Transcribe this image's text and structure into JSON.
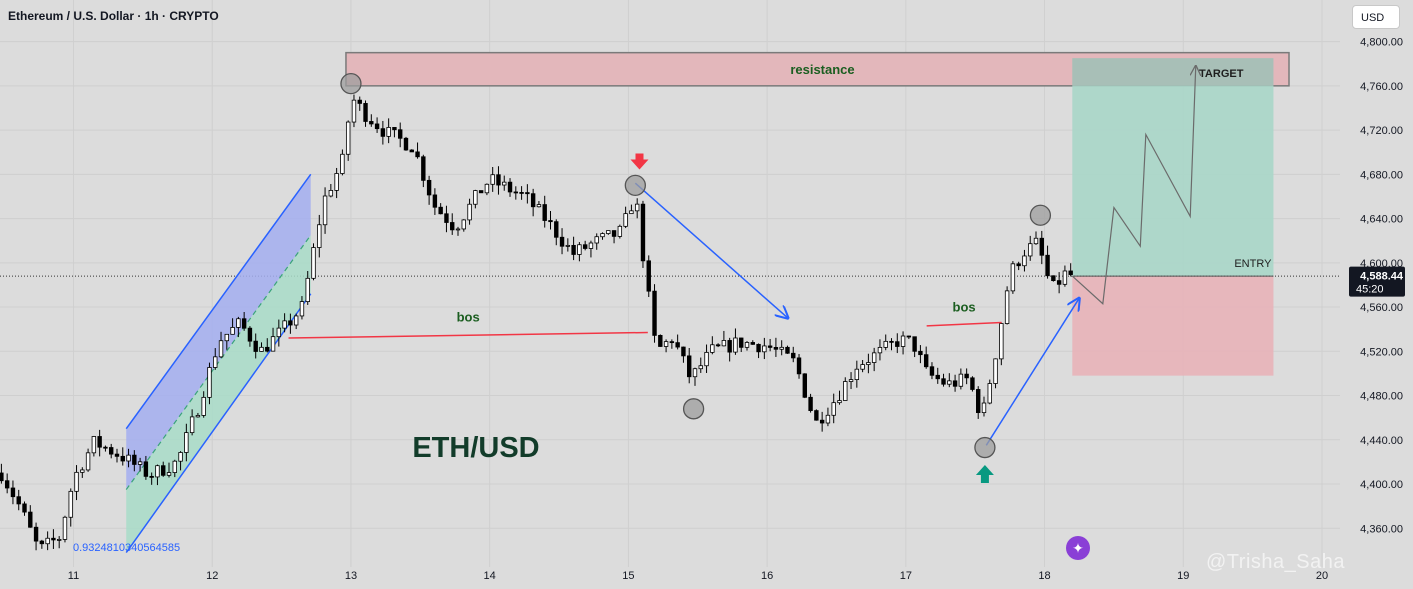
{
  "header": {
    "title": "Ethereum / U.S. Dollar · 1h · CRYPTO",
    "currency_button": "USD"
  },
  "watermark": "@Trisha_Saha",
  "colors": {
    "background": "#dcdcdc",
    "candle": "#000000",
    "resistance_zone": "#e3b7bb",
    "profit_zone": "#a9d6c8",
    "loss_zone": "#e8b3b8",
    "channel_upper": "#a3aef0",
    "channel_lower": "#a8dcc8",
    "arrow_blue": "#2962ff",
    "bos_red": "#f23645",
    "label_green": "#1b5e20",
    "price_badge": "#131722"
  },
  "chart_data": {
    "type": "candlestick",
    "title": "ETH/USD",
    "xlabel": "",
    "ylabel": "",
    "ylim": [
      4325,
      4815
    ],
    "x_range": [
      10.47,
      20.0
    ],
    "y_ticks": [
      4360,
      4400,
      4440,
      4480,
      4520,
      4560,
      4600,
      4640,
      4680,
      4720,
      4760,
      4800
    ],
    "y_tick_labels": [
      "4,360.00",
      "4,400.00",
      "4,440.00",
      "4,480.00",
      "4,520.00",
      "4,560.00",
      "4,600.00",
      "4,640.00",
      "4,680.00",
      "4,720.00",
      "4,760.00",
      "4,800.00"
    ],
    "x_ticks": [
      {
        "x": 11,
        "label": "11"
      },
      {
        "x": 12,
        "label": "12"
      },
      {
        "x": 13,
        "label": "13"
      },
      {
        "x": 14,
        "label": "14"
      },
      {
        "x": 15,
        "label": "15"
      },
      {
        "x": 16,
        "label": "16"
      },
      {
        "x": 17,
        "label": "17"
      },
      {
        "x": 18,
        "label": "18"
      },
      {
        "x": 19,
        "label": "19"
      },
      {
        "x": 20,
        "label": "20"
      }
    ],
    "last_price": {
      "value": 4588.44,
      "label": "4,588.44",
      "countdown": "45:20"
    },
    "price_path": [
      {
        "x": 10.48,
        "y": 4410
      },
      {
        "x": 10.62,
        "y": 4378
      },
      {
        "x": 10.75,
        "y": 4340
      },
      {
        "x": 10.9,
        "y": 4352
      },
      {
        "x": 11.0,
        "y": 4405
      },
      {
        "x": 11.15,
        "y": 4438
      },
      {
        "x": 11.35,
        "y": 4425
      },
      {
        "x": 11.55,
        "y": 4408
      },
      {
        "x": 11.75,
        "y": 4420
      },
      {
        "x": 11.9,
        "y": 4470
      },
      {
        "x": 12.05,
        "y": 4530
      },
      {
        "x": 12.2,
        "y": 4545
      },
      {
        "x": 12.35,
        "y": 4520
      },
      {
        "x": 12.5,
        "y": 4538
      },
      {
        "x": 12.65,
        "y": 4560
      },
      {
        "x": 12.8,
        "y": 4655
      },
      {
        "x": 12.95,
        "y": 4695
      },
      {
        "x": 13.0,
        "y": 4750
      },
      {
        "x": 13.1,
        "y": 4735
      },
      {
        "x": 13.25,
        "y": 4718
      },
      {
        "x": 13.45,
        "y": 4705
      },
      {
        "x": 13.6,
        "y": 4652
      },
      {
        "x": 13.75,
        "y": 4632
      },
      {
        "x": 13.95,
        "y": 4668
      },
      {
        "x": 14.0,
        "y": 4675
      },
      {
        "x": 14.25,
        "y": 4660
      },
      {
        "x": 14.4,
        "y": 4640
      },
      {
        "x": 14.6,
        "y": 4608
      },
      {
        "x": 14.75,
        "y": 4618
      },
      {
        "x": 14.95,
        "y": 4628
      },
      {
        "x": 15.05,
        "y": 4662
      },
      {
        "x": 15.12,
        "y": 4592
      },
      {
        "x": 15.2,
        "y": 4520
      },
      {
        "x": 15.32,
        "y": 4532
      },
      {
        "x": 15.45,
        "y": 4495
      },
      {
        "x": 15.6,
        "y": 4520
      },
      {
        "x": 15.8,
        "y": 4528
      },
      {
        "x": 16.0,
        "y": 4525
      },
      {
        "x": 16.2,
        "y": 4510
      },
      {
        "x": 16.35,
        "y": 4455
      },
      {
        "x": 16.5,
        "y": 4478
      },
      {
        "x": 16.65,
        "y": 4508
      },
      {
        "x": 16.8,
        "y": 4518
      },
      {
        "x": 16.95,
        "y": 4530
      },
      {
        "x": 17.05,
        "y": 4528
      },
      {
        "x": 17.15,
        "y": 4500
      },
      {
        "x": 17.3,
        "y": 4490
      },
      {
        "x": 17.45,
        "y": 4495
      },
      {
        "x": 17.55,
        "y": 4460
      },
      {
        "x": 17.65,
        "y": 4520
      },
      {
        "x": 17.75,
        "y": 4590
      },
      {
        "x": 17.85,
        "y": 4610
      },
      {
        "x": 17.95,
        "y": 4618
      },
      {
        "x": 18.05,
        "y": 4575
      },
      {
        "x": 18.15,
        "y": 4590
      },
      {
        "x": 18.22,
        "y": 4588
      }
    ],
    "zones": {
      "resistance": {
        "label": "resistance",
        "x0": 13.0,
        "x1": 20.0,
        "y0": 4760,
        "y1": 4790
      },
      "target_box": {
        "label": "TARGET",
        "x0": 18.2,
        "x1": 19.65,
        "y0": 4588,
        "y1": 4785
      },
      "stop_box": {
        "x0": 18.2,
        "x1": 19.65,
        "y0": 4498,
        "y1": 4588
      },
      "entry_line": {
        "label": "ENTRY",
        "y": 4588
      }
    },
    "annotations": {
      "symbol_label": "ETH/USD",
      "bos_labels": [
        "bos",
        "bos"
      ],
      "fib_value": "0.9324810340564585"
    },
    "circles": [
      {
        "x": 13.0,
        "y": 4762
      },
      {
        "x": 15.05,
        "y": 4670
      },
      {
        "x": 15.47,
        "y": 4468
      },
      {
        "x": 17.57,
        "y": 4433
      },
      {
        "x": 17.97,
        "y": 4643
      }
    ],
    "bos_lines": [
      {
        "x0": 12.55,
        "y0": 4532,
        "x1": 15.14,
        "y1": 4537
      },
      {
        "x0": 17.15,
        "y0": 4543,
        "x1": 17.69,
        "y1": 4546
      }
    ],
    "blue_arrows": [
      {
        "x0": 15.05,
        "y0": 4672,
        "x1": 16.15,
        "y1": 4550
      },
      {
        "x0": 17.58,
        "y0": 4435,
        "x1": 18.25,
        "y1": 4568
      }
    ],
    "markers": [
      {
        "type": "down-arrow",
        "x": 15.08,
        "y": 4688
      },
      {
        "type": "up-arrow",
        "x": 17.57,
        "y": 4410
      }
    ],
    "projection_path": [
      {
        "x": 18.2,
        "y": 4588
      },
      {
        "x": 18.42,
        "y": 4563
      },
      {
        "x": 18.5,
        "y": 4650
      },
      {
        "x": 18.69,
        "y": 4615
      },
      {
        "x": 18.73,
        "y": 4716
      },
      {
        "x": 19.05,
        "y": 4642
      },
      {
        "x": 19.09,
        "y": 4778
      }
    ],
    "channel": {
      "upper": [
        {
          "x": 11.38,
          "y": 4450
        },
        {
          "x": 12.71,
          "y": 4680
        }
      ],
      "mid": [
        {
          "x": 11.38,
          "y": 4395
        },
        {
          "x": 12.71,
          "y": 4625
        }
      ],
      "lower": [
        {
          "x": 11.38,
          "y": 4338
        },
        {
          "x": 12.71,
          "y": 4572
        }
      ]
    }
  }
}
